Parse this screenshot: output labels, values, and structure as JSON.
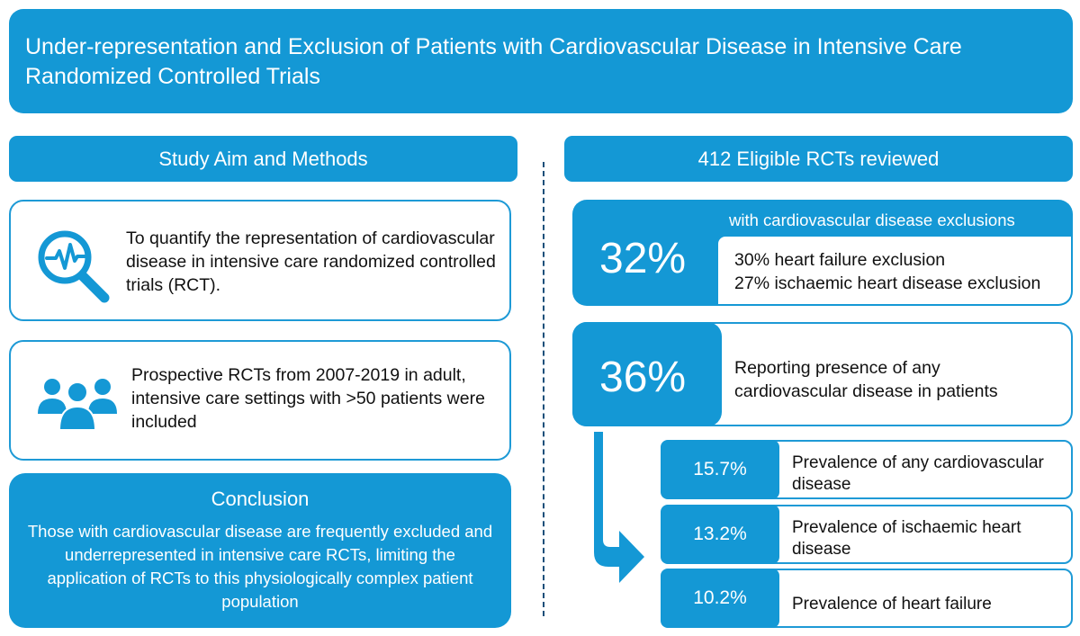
{
  "title": "Under-representation and Exclusion of Patients with Cardiovascular Disease in Intensive Care Randomized Controlled Trials",
  "left": {
    "heading": "Study Aim and Methods",
    "aim_text": "To quantify the representation of cardiovascular disease in intensive care randomized controlled trials (RCT).",
    "methods_text": "Prospective RCTs from 2007-2019 in adult, intensive care settings with >50 patients were included",
    "conclusion_heading": "Conclusion",
    "conclusion_text": "Those with cardiovascular disease are frequently excluded and underrepresented in intensive care RCTs, limiting the application of RCTs to this physiologically complex patient population"
  },
  "right": {
    "heading": "412 Eligible RCTs reviewed",
    "exclusions": {
      "percent": "32%",
      "label": "with cardiovascular disease exclusions",
      "line1": "30% heart failure exclusion",
      "line2": "27% ischaemic heart disease exclusion"
    },
    "reporting": {
      "percent": "36%",
      "text": "Reporting presence of any cardiovascular disease in patients"
    },
    "prevalence": [
      {
        "percent": "15.7%",
        "label": "Prevalence of any cardiovascular disease"
      },
      {
        "percent": "13.2%",
        "label": "Prevalence of ischaemic heart disease"
      },
      {
        "percent": "10.2%",
        "label": "Prevalence of heart failure"
      }
    ]
  },
  "icons": {
    "aim": "magnifier-heartbeat-icon",
    "methods": "people-group-icon",
    "arrow": "down-right-arrow-icon"
  },
  "colors": {
    "primary_blue": "#1498d5",
    "border_blue": "#1e9ad6",
    "divider": "#1a4f7a"
  }
}
